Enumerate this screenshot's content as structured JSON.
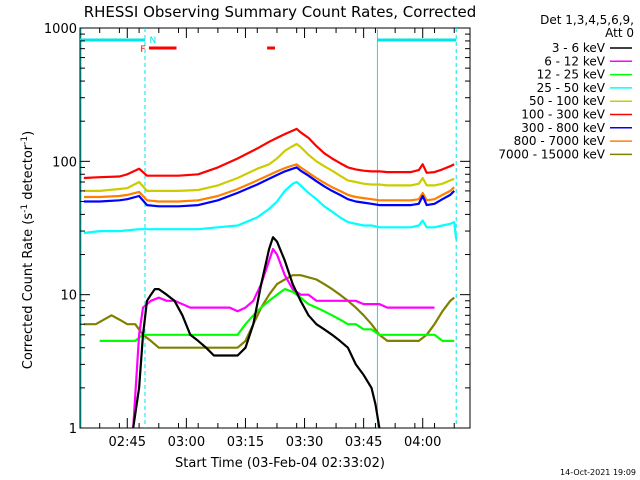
{
  "chart_data": {
    "type": "line",
    "title": "RHESSI Observing Summary Count Rates, Corrected",
    "xlabel": "Start Time (03-Feb-04 02:33:02)",
    "ylabel_main": "Corrected Count Rate (s",
    "ylabel_sup1": "-1",
    "ylabel_mid": " detector",
    "ylabel_sup2": "-1",
    "ylabel_end": ")",
    "yscale": "log",
    "ylim": [
      1,
      1000
    ],
    "y_ticks": [
      {
        "value": 1,
        "label": "1"
      },
      {
        "value": 10,
        "label": "10"
      },
      {
        "value": 100,
        "label": "100"
      },
      {
        "value": 1000,
        "label": "1000"
      }
    ],
    "xlim": [
      0,
      99
    ],
    "x_ticks": [
      {
        "value": 12,
        "label": "02:45"
      },
      {
        "value": 27,
        "label": "03:00"
      },
      {
        "value": 42,
        "label": "03:15"
      },
      {
        "value": 57,
        "label": "03:30"
      },
      {
        "value": 72,
        "label": "03:45"
      },
      {
        "value": 87,
        "label": "04:00"
      }
    ],
    "footer_date": "14-Oct-2021 19:09",
    "legend": {
      "header1": "Det 1,3,4,5,6,9,",
      "header2": "Att 0",
      "position": "right"
    },
    "flags": [
      {
        "label": "F",
        "color": "#ff0000",
        "at": 16
      },
      {
        "label": "N",
        "color": "#00e5e5",
        "at": 18.5
      }
    ],
    "flare_bars": [
      {
        "start": 17.5,
        "end": 24.5,
        "color": "#ff0000"
      },
      {
        "start": 47.5,
        "end": 49.5,
        "color": "#ff0000"
      }
    ],
    "night_bars": [
      {
        "start": 0,
        "end": 16.5,
        "color": "#00e5e5"
      },
      {
        "start": 75.5,
        "end": 95.5,
        "color": "#00e5e5"
      }
    ],
    "night_lines_solid": [
      75.5
    ],
    "night_lines_dashed": [
      16.5,
      95.5
    ],
    "series": [
      {
        "name": "3 - 6 keV",
        "color": "#000000",
        "x": [
          13.5,
          15,
          16,
          17,
          18,
          19,
          20,
          22,
          24,
          26,
          28,
          30,
          32,
          34,
          36,
          38,
          40,
          42,
          44,
          46,
          48,
          49,
          50,
          52,
          54,
          56,
          58,
          60,
          62,
          64,
          66,
          68,
          70,
          72,
          74,
          75,
          76
        ],
        "values": [
          1,
          2,
          5,
          9,
          10,
          11,
          11,
          10,
          9,
          7,
          5,
          4.5,
          4,
          3.5,
          3.5,
          3.5,
          3.5,
          4,
          6,
          12,
          22,
          27,
          25,
          18,
          12,
          9,
          7,
          6,
          5.5,
          5,
          4.5,
          4,
          3,
          2.5,
          2,
          1.5,
          1
        ]
      },
      {
        "name": "6 - 12 keV",
        "color": "#ff00ff",
        "x": [
          13.5,
          15,
          16,
          18,
          20,
          22,
          24,
          26,
          28,
          30,
          32,
          34,
          36,
          38,
          40,
          42,
          44,
          46,
          48,
          49,
          50,
          52,
          54,
          56,
          58,
          60,
          62,
          64,
          66,
          68,
          70,
          72,
          74,
          76,
          78,
          80,
          82,
          84,
          86,
          88,
          90
        ],
        "values": [
          1,
          5,
          8,
          9,
          9.5,
          9,
          9,
          8.5,
          8,
          8,
          8,
          8,
          8,
          8,
          7.5,
          8,
          9,
          12,
          18,
          22,
          20,
          14,
          11,
          10,
          10,
          9,
          9,
          9,
          9,
          9,
          9,
          8.5,
          8.5,
          8.5,
          8,
          8,
          8,
          8,
          8,
          8,
          8
        ]
      },
      {
        "name": "12 - 25 keV",
        "color": "#00ff00",
        "x": [
          5,
          8,
          10,
          12,
          14,
          16,
          18,
          20,
          22,
          24,
          26,
          28,
          30,
          32,
          34,
          36,
          38,
          40,
          42,
          44,
          46,
          48,
          50,
          52,
          54,
          56,
          58,
          60,
          62,
          64,
          66,
          68,
          70,
          72,
          74,
          76,
          78,
          80,
          82,
          84,
          86,
          88,
          90,
          92,
          94,
          95
        ],
        "values": [
          4.5,
          4.5,
          4.5,
          4.5,
          4.5,
          5,
          5,
          5,
          5,
          5,
          5,
          5,
          5,
          5,
          5,
          5,
          5,
          5,
          6,
          7,
          8,
          9,
          10,
          11,
          10.5,
          9.5,
          8.5,
          8,
          7.5,
          7,
          6.5,
          6,
          6,
          5.5,
          5.5,
          5,
          5,
          5,
          5,
          5,
          5,
          5,
          5,
          4.5,
          4.5,
          4.5
        ]
      },
      {
        "name": "25 - 50 keV",
        "color": "#00ffff",
        "x": [
          1,
          5,
          10,
          15,
          20,
          25,
          30,
          35,
          40,
          45,
          48,
          50,
          52,
          54,
          55,
          56,
          58,
          60,
          62,
          64,
          66,
          68,
          70,
          72,
          74,
          76,
          78,
          80,
          82,
          84,
          86,
          87,
          88,
          90,
          92,
          94,
          95,
          95.5
        ],
        "values": [
          29,
          30,
          30,
          31,
          31,
          31,
          31,
          32,
          33,
          38,
          44,
          50,
          60,
          68,
          70,
          66,
          58,
          52,
          46,
          42,
          38,
          35,
          34,
          33,
          33,
          32,
          32,
          32,
          32,
          32,
          33,
          36,
          32,
          32,
          33,
          34,
          35,
          26
        ]
      },
      {
        "name": "50 - 100 keV",
        "color": "#cccc00",
        "x": [
          1,
          5,
          10,
          12,
          15,
          17,
          20,
          25,
          30,
          35,
          40,
          45,
          48,
          50,
          52,
          54,
          55,
          56,
          58,
          60,
          62,
          64,
          66,
          68,
          70,
          72,
          74,
          76,
          78,
          80,
          82,
          84,
          86,
          87,
          88,
          90,
          92,
          94,
          95
        ],
        "values": [
          60,
          60,
          62,
          63,
          70,
          60,
          60,
          60,
          61,
          66,
          75,
          88,
          95,
          105,
          120,
          130,
          135,
          128,
          112,
          100,
          92,
          85,
          78,
          72,
          70,
          68,
          67,
          67,
          66,
          66,
          66,
          66,
          68,
          75,
          66,
          66,
          68,
          72,
          74
        ]
      },
      {
        "name": "100 - 300 keV",
        "color": "#ff0000",
        "x": [
          1,
          5,
          10,
          12,
          15,
          17,
          20,
          25,
          30,
          35,
          40,
          45,
          48,
          50,
          52,
          54,
          55,
          56,
          58,
          60,
          62,
          64,
          66,
          68,
          70,
          72,
          74,
          76,
          78,
          80,
          82,
          84,
          86,
          87,
          88,
          90,
          92,
          94,
          95
        ],
        "values": [
          75,
          76,
          77,
          80,
          88,
          78,
          78,
          78,
          80,
          90,
          105,
          125,
          140,
          150,
          160,
          170,
          175,
          165,
          150,
          130,
          115,
          105,
          97,
          90,
          87,
          85,
          84,
          84,
          83,
          83,
          83,
          83,
          86,
          95,
          82,
          83,
          87,
          92,
          95
        ]
      },
      {
        "name": "300 - 800 keV",
        "color": "#0000ff",
        "x": [
          1,
          5,
          10,
          12,
          15,
          17,
          20,
          25,
          30,
          35,
          40,
          45,
          48,
          50,
          52,
          54,
          55,
          56,
          58,
          60,
          62,
          64,
          66,
          68,
          70,
          72,
          74,
          76,
          78,
          80,
          82,
          84,
          86,
          87,
          88,
          90,
          92,
          94,
          95
        ],
        "values": [
          50,
          50,
          51,
          52,
          55,
          47,
          46,
          46,
          47,
          51,
          58,
          67,
          74,
          79,
          84,
          88,
          90,
          85,
          78,
          71,
          65,
          60,
          56,
          52,
          50,
          49,
          48,
          47,
          47,
          47,
          47,
          47,
          48,
          55,
          47,
          48,
          52,
          56,
          60
        ]
      },
      {
        "name": "800 - 7000 keV",
        "color": "#ff8000",
        "x": [
          1,
          5,
          10,
          12,
          15,
          17,
          20,
          25,
          30,
          35,
          40,
          45,
          48,
          50,
          52,
          54,
          55,
          56,
          58,
          60,
          62,
          64,
          66,
          68,
          70,
          72,
          74,
          76,
          78,
          80,
          82,
          84,
          86,
          87,
          88,
          90,
          92,
          94,
          95
        ],
        "values": [
          54,
          54,
          55,
          56,
          59,
          51,
          50,
          50,
          51,
          55,
          62,
          72,
          79,
          84,
          89,
          93,
          95,
          90,
          82,
          75,
          69,
          64,
          60,
          56,
          54,
          53,
          52,
          51,
          51,
          51,
          51,
          51,
          52,
          58,
          51,
          52,
          56,
          60,
          64
        ]
      },
      {
        "name": "7000 - 15000 keV",
        "color": "#808000",
        "x": [
          1,
          4,
          8,
          10,
          12,
          14,
          16,
          18,
          20,
          22,
          24,
          26,
          28,
          30,
          32,
          34,
          36,
          38,
          40,
          42,
          44,
          46,
          48,
          50,
          52,
          54,
          56,
          58,
          60,
          62,
          64,
          66,
          68,
          70,
          72,
          74,
          76,
          78,
          80,
          82,
          84,
          86,
          88,
          90,
          92,
          94,
          95
        ],
        "values": [
          6,
          6,
          7,
          6.5,
          6,
          6,
          5,
          4.5,
          4,
          4,
          4,
          4,
          4,
          4,
          4,
          4,
          4,
          4,
          4,
          4.5,
          6,
          8,
          10,
          12,
          13,
          14,
          14,
          13.5,
          13,
          12,
          11,
          10,
          9,
          8,
          7,
          6,
          5,
          4.5,
          4.5,
          4.5,
          4.5,
          4.5,
          5,
          6,
          7.5,
          9,
          9.5
        ]
      }
    ]
  }
}
